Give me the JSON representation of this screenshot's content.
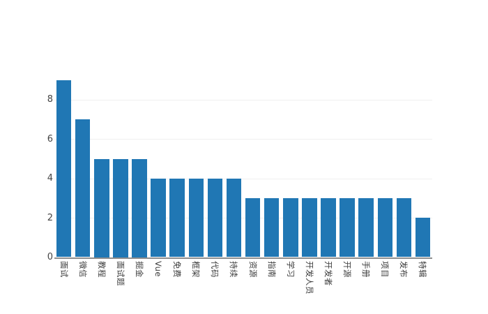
{
  "chart_data": {
    "type": "bar",
    "title": "",
    "xlabel": "",
    "ylabel": "",
    "categories": [
      "面试",
      "微信",
      "教程",
      "面试题",
      "掘金",
      "Vue",
      "免费",
      "框架",
      "代码",
      "持续",
      "资源",
      "指南",
      "学习",
      "开发人员",
      "开发者",
      "开源",
      "手册",
      "项目",
      "发布",
      "特辑"
    ],
    "values": [
      9,
      7,
      5,
      5,
      5,
      4,
      4,
      4,
      4,
      4,
      3,
      3,
      3,
      3,
      3,
      3,
      3,
      3,
      3,
      2
    ],
    "yticks": [
      0,
      2,
      4,
      6,
      8
    ],
    "ylim": [
      0,
      9.5
    ],
    "grid": true,
    "legend_position": "none",
    "x_tick_label_rotation_deg": 90,
    "colors": {
      "bar": "#2077b4",
      "axis_line": "#8e8e8e",
      "gridline": "#f0f0f0",
      "y_tick_label": "#444444",
      "x_tick_label": "#3c3c3c",
      "background": "#ffffff"
    }
  }
}
